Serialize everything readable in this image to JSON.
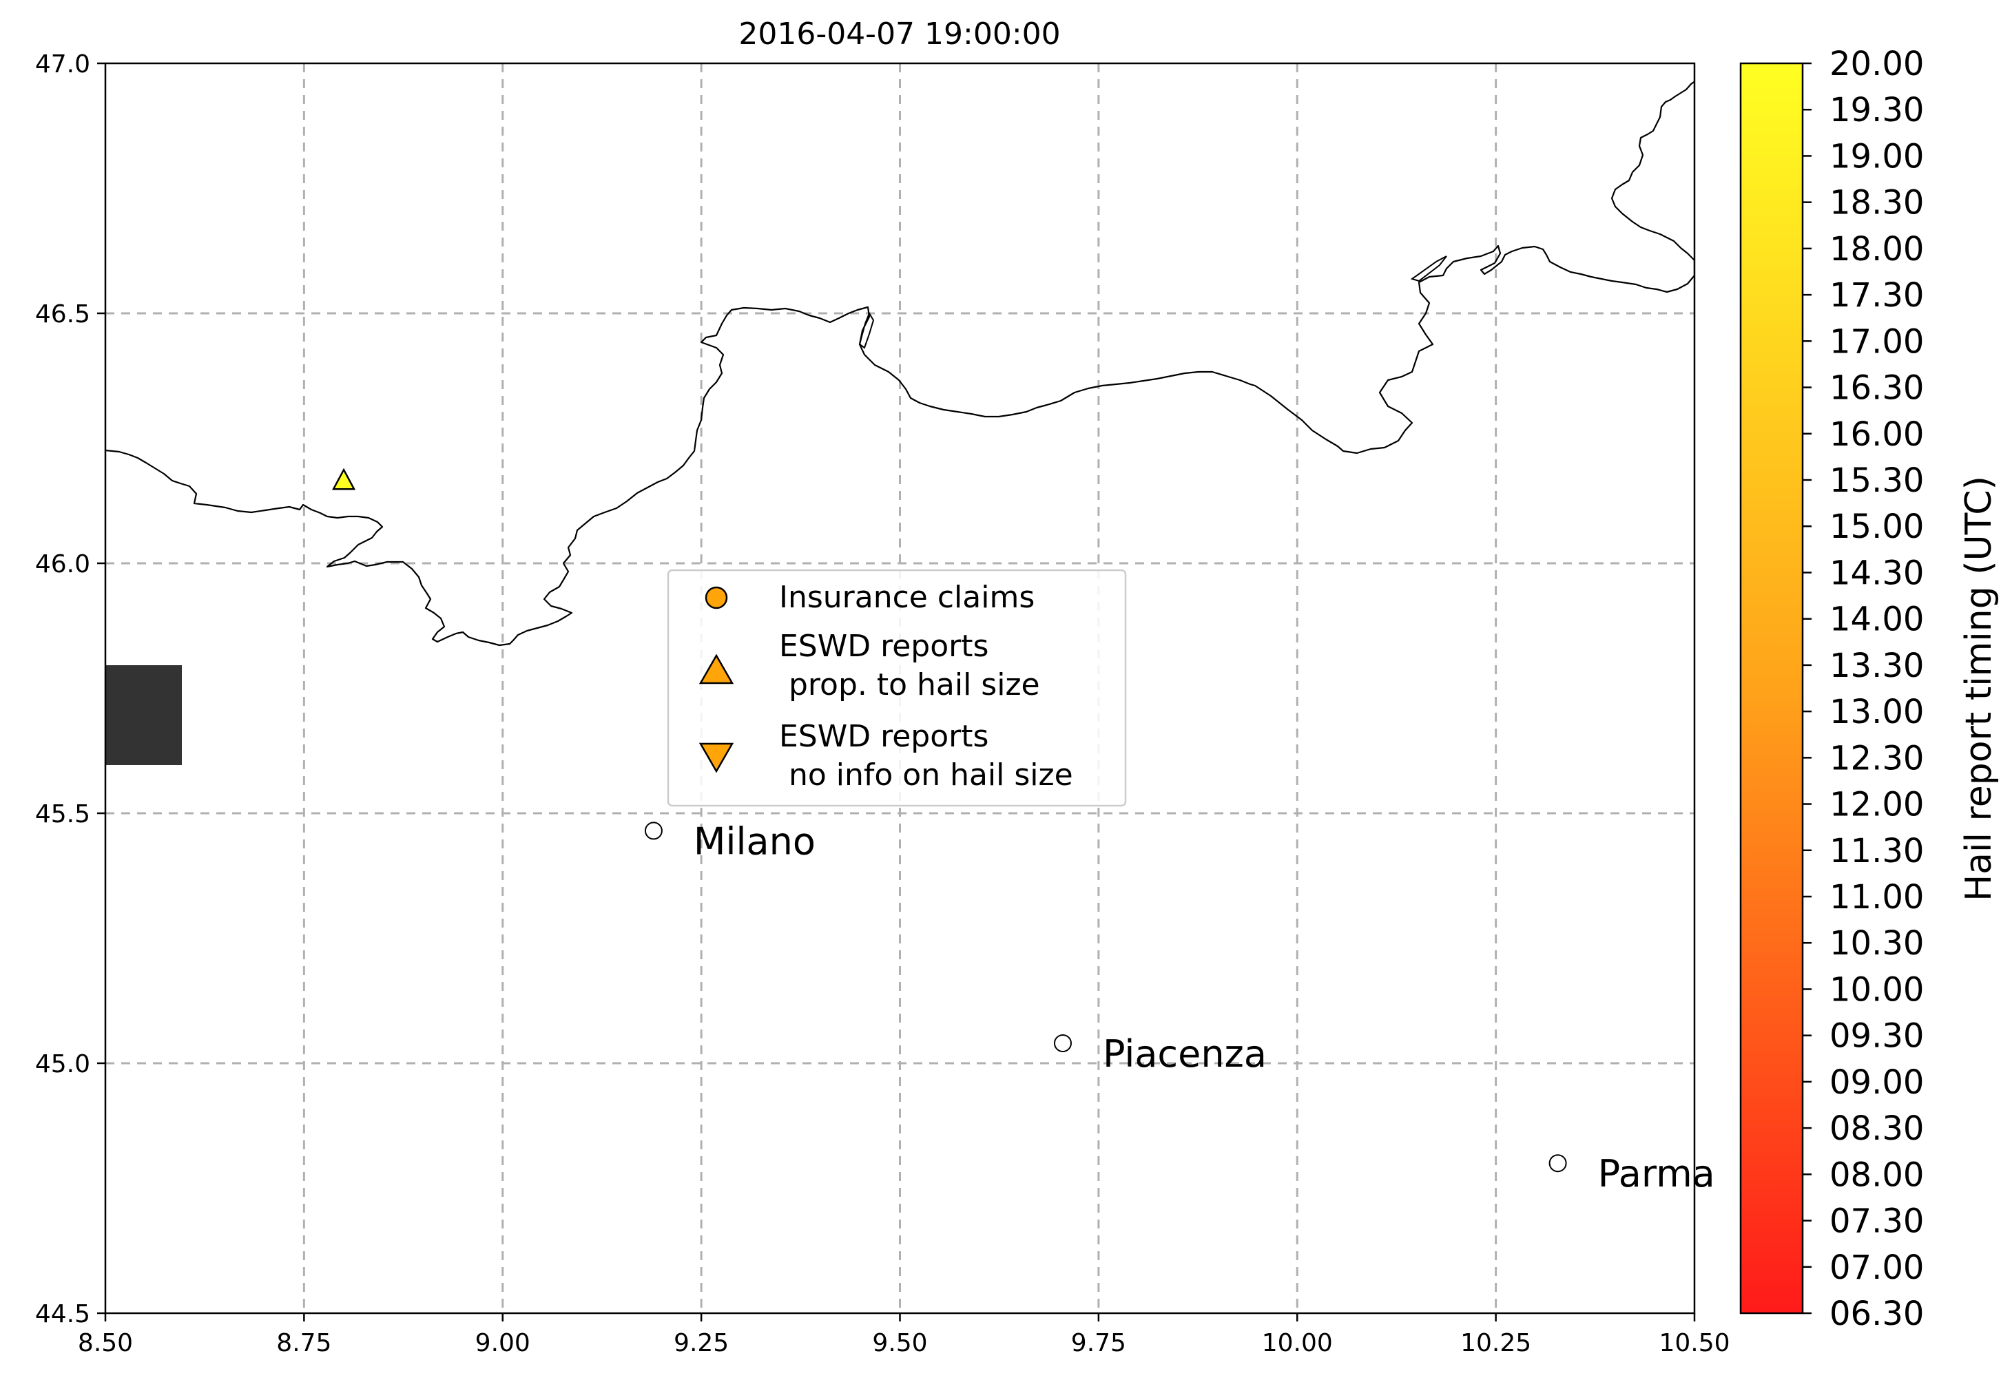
{
  "title": "2016-04-07 19:00:00",
  "map": {
    "lon_range": [
      8.5,
      10.5
    ],
    "lat_range": [
      44.5,
      47.0
    ],
    "x_ticks": [
      "8.50",
      "8.75",
      "9.00",
      "9.25",
      "9.50",
      "9.75",
      "10.00",
      "10.25",
      "10.50"
    ],
    "y_ticks": [
      "44.5",
      "45.0",
      "45.5",
      "46.0",
      "46.5",
      "47.0"
    ],
    "grid": true,
    "grid_style": "dashed",
    "border_color": "#000000"
  },
  "cities": [
    {
      "name": "Milano",
      "lon": 9.19,
      "lat": 45.465
    },
    {
      "name": "Piacenza",
      "lon": 9.705,
      "lat": 45.04
    },
    {
      "name": "Parma",
      "lon": 10.328,
      "lat": 44.8
    }
  ],
  "reports": [
    {
      "type": "eswd-size",
      "lon": 8.8,
      "lat": 46.165,
      "time_utc": 20.0,
      "color": "#ffff22"
    }
  ],
  "legend": {
    "items": [
      {
        "marker": "circle",
        "label_lines": [
          "Insurance claims"
        ]
      },
      {
        "marker": "triangle-up",
        "label_lines": [
          "ESWD reports",
          " prop. to hail size"
        ]
      },
      {
        "marker": "triangle-down",
        "label_lines": [
          "ESWD reports",
          " no info on hail size"
        ]
      }
    ],
    "marker_color": "#ffa50a"
  },
  "colorbar": {
    "label": "Hail report timing (UTC)",
    "ticks": [
      "20.00",
      "19.30",
      "19.00",
      "18.30",
      "18.00",
      "17.30",
      "17.00",
      "16.30",
      "16.00",
      "15.30",
      "15.00",
      "14.30",
      "14.00",
      "13.30",
      "13.00",
      "12.30",
      "12.00",
      "11.30",
      "11.00",
      "10.30",
      "10.00",
      "09.30",
      "09.00",
      "08.30",
      "08.00",
      "07.30",
      "07.00",
      "06.30"
    ],
    "color_top": "#ffff22",
    "color_mid": "#ffa31a",
    "color_bottom": "#ff1a1a"
  },
  "dark_patch_color": "#333333"
}
